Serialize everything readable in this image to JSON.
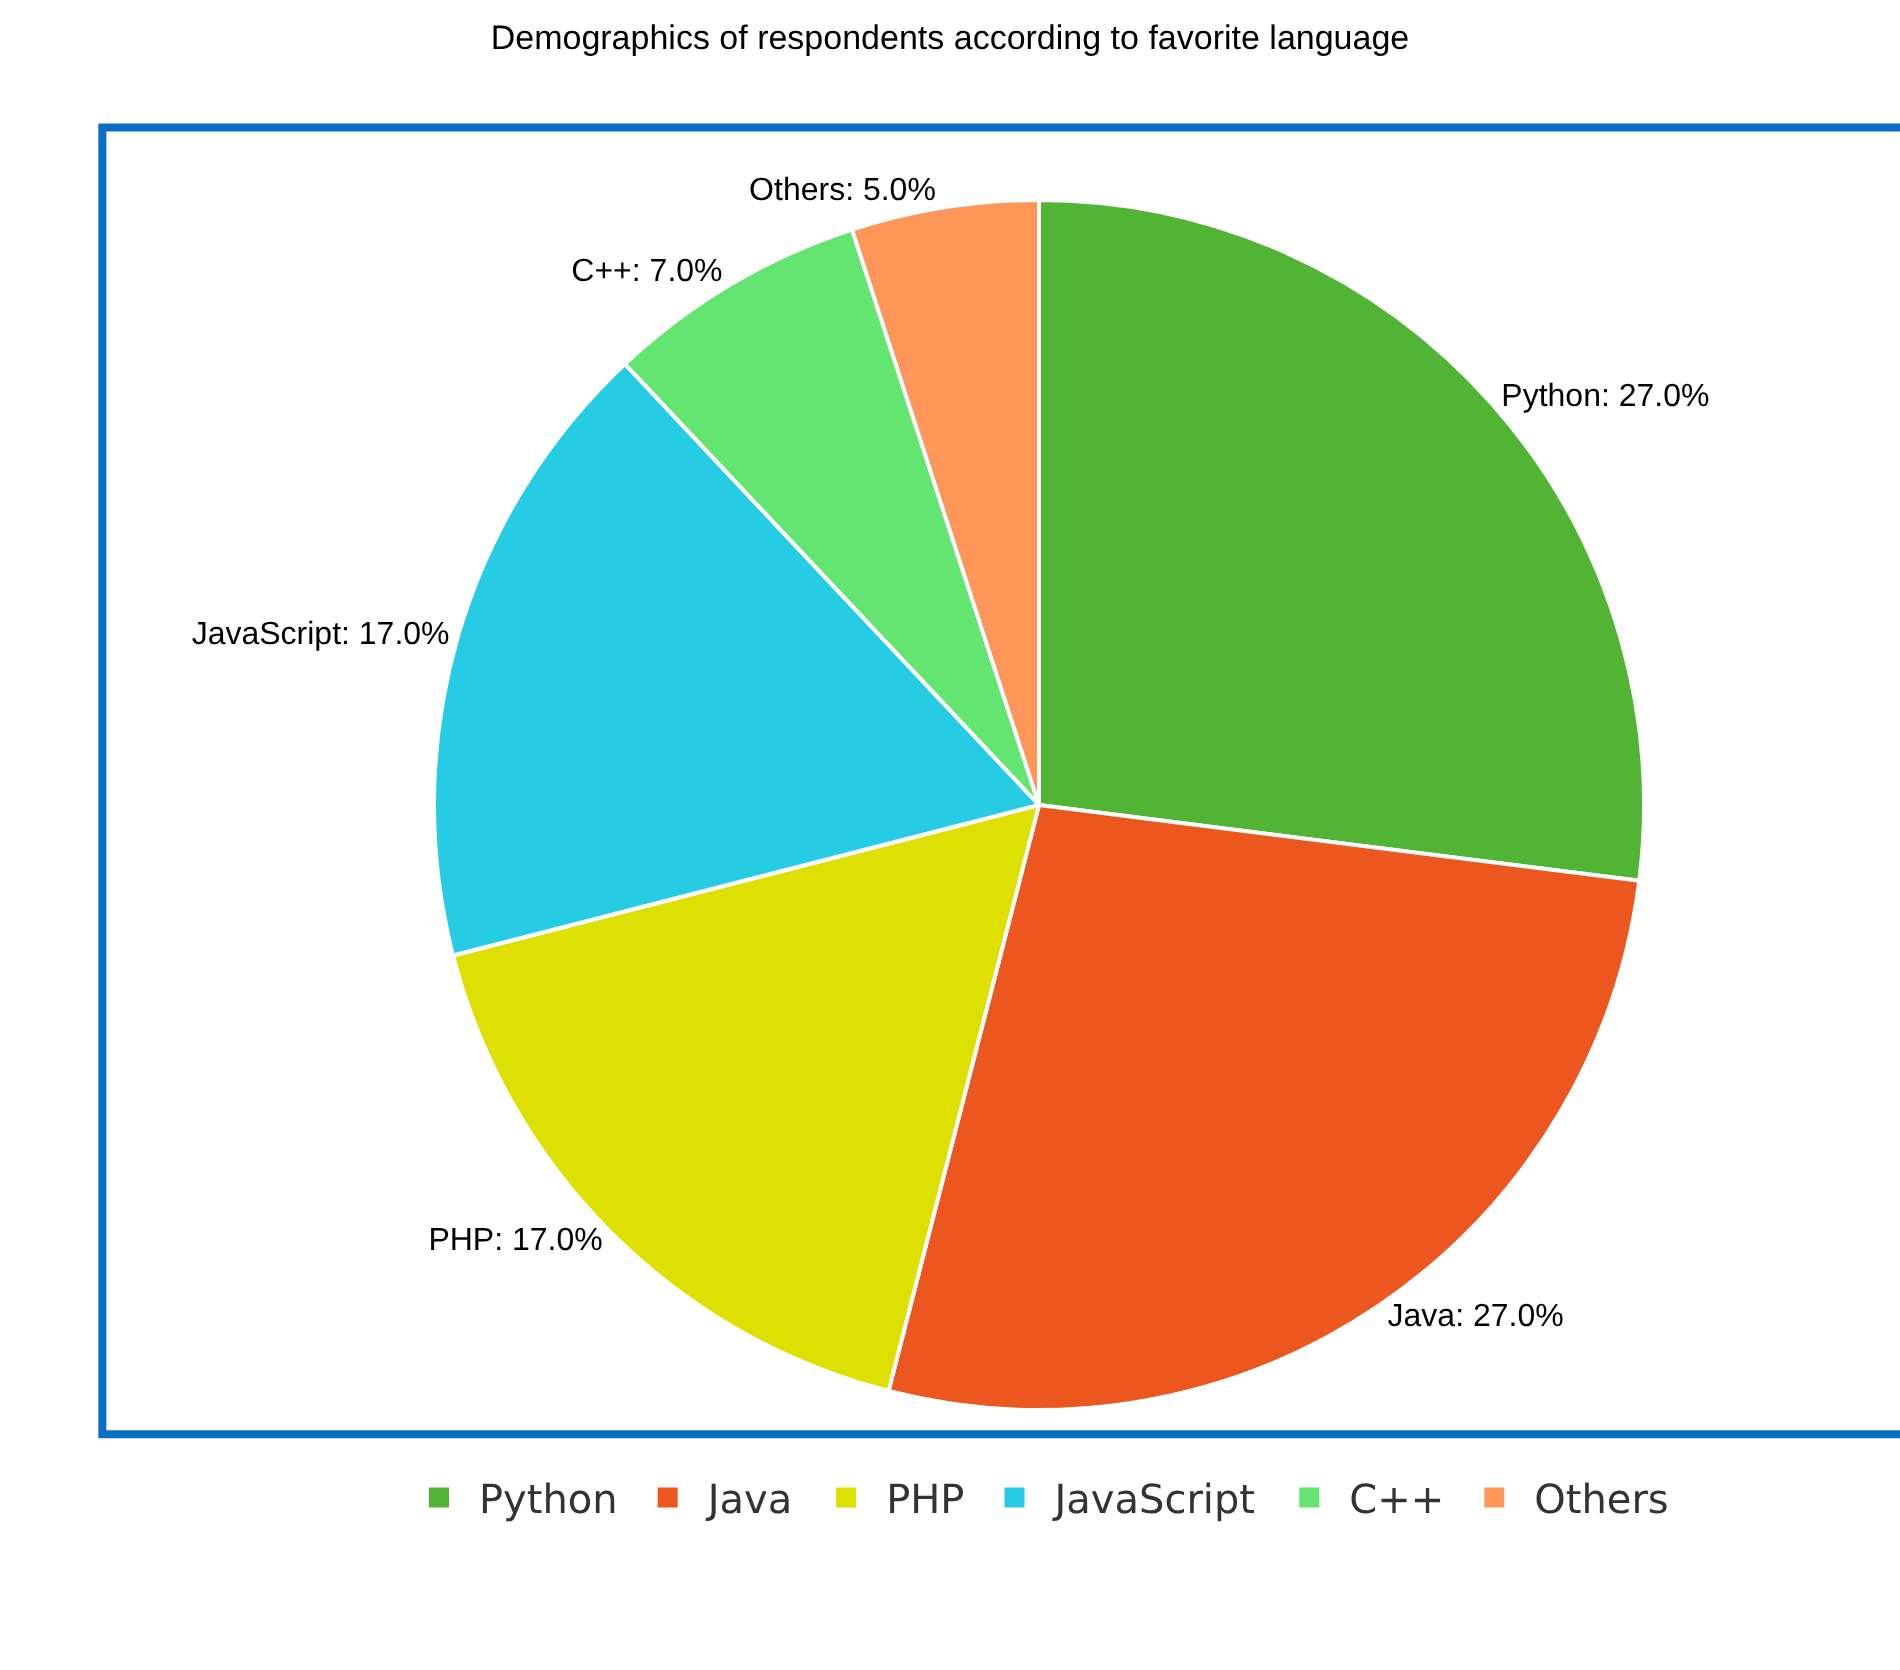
{
  "chart_data": {
    "type": "pie",
    "title": "Demographics of respondents according to favorite language",
    "categories": [
      "Python",
      "Java",
      "PHP",
      "JavaScript",
      "C++",
      "Others"
    ],
    "values": [
      27,
      27,
      17,
      17,
      7,
      5
    ],
    "colors": [
      "#52b435",
      "#ec561f",
      "#dde000",
      "#26cce4",
      "#64e571",
      "#fd9658"
    ],
    "value_labels": [
      "Python: 27.0%",
      "Java: 27.0%",
      "PHP: 17.0%",
      "JavaScript: 17.0%",
      "C++: 7.0%",
      "Others: 5.0%"
    ],
    "legend": "bottom"
  }
}
